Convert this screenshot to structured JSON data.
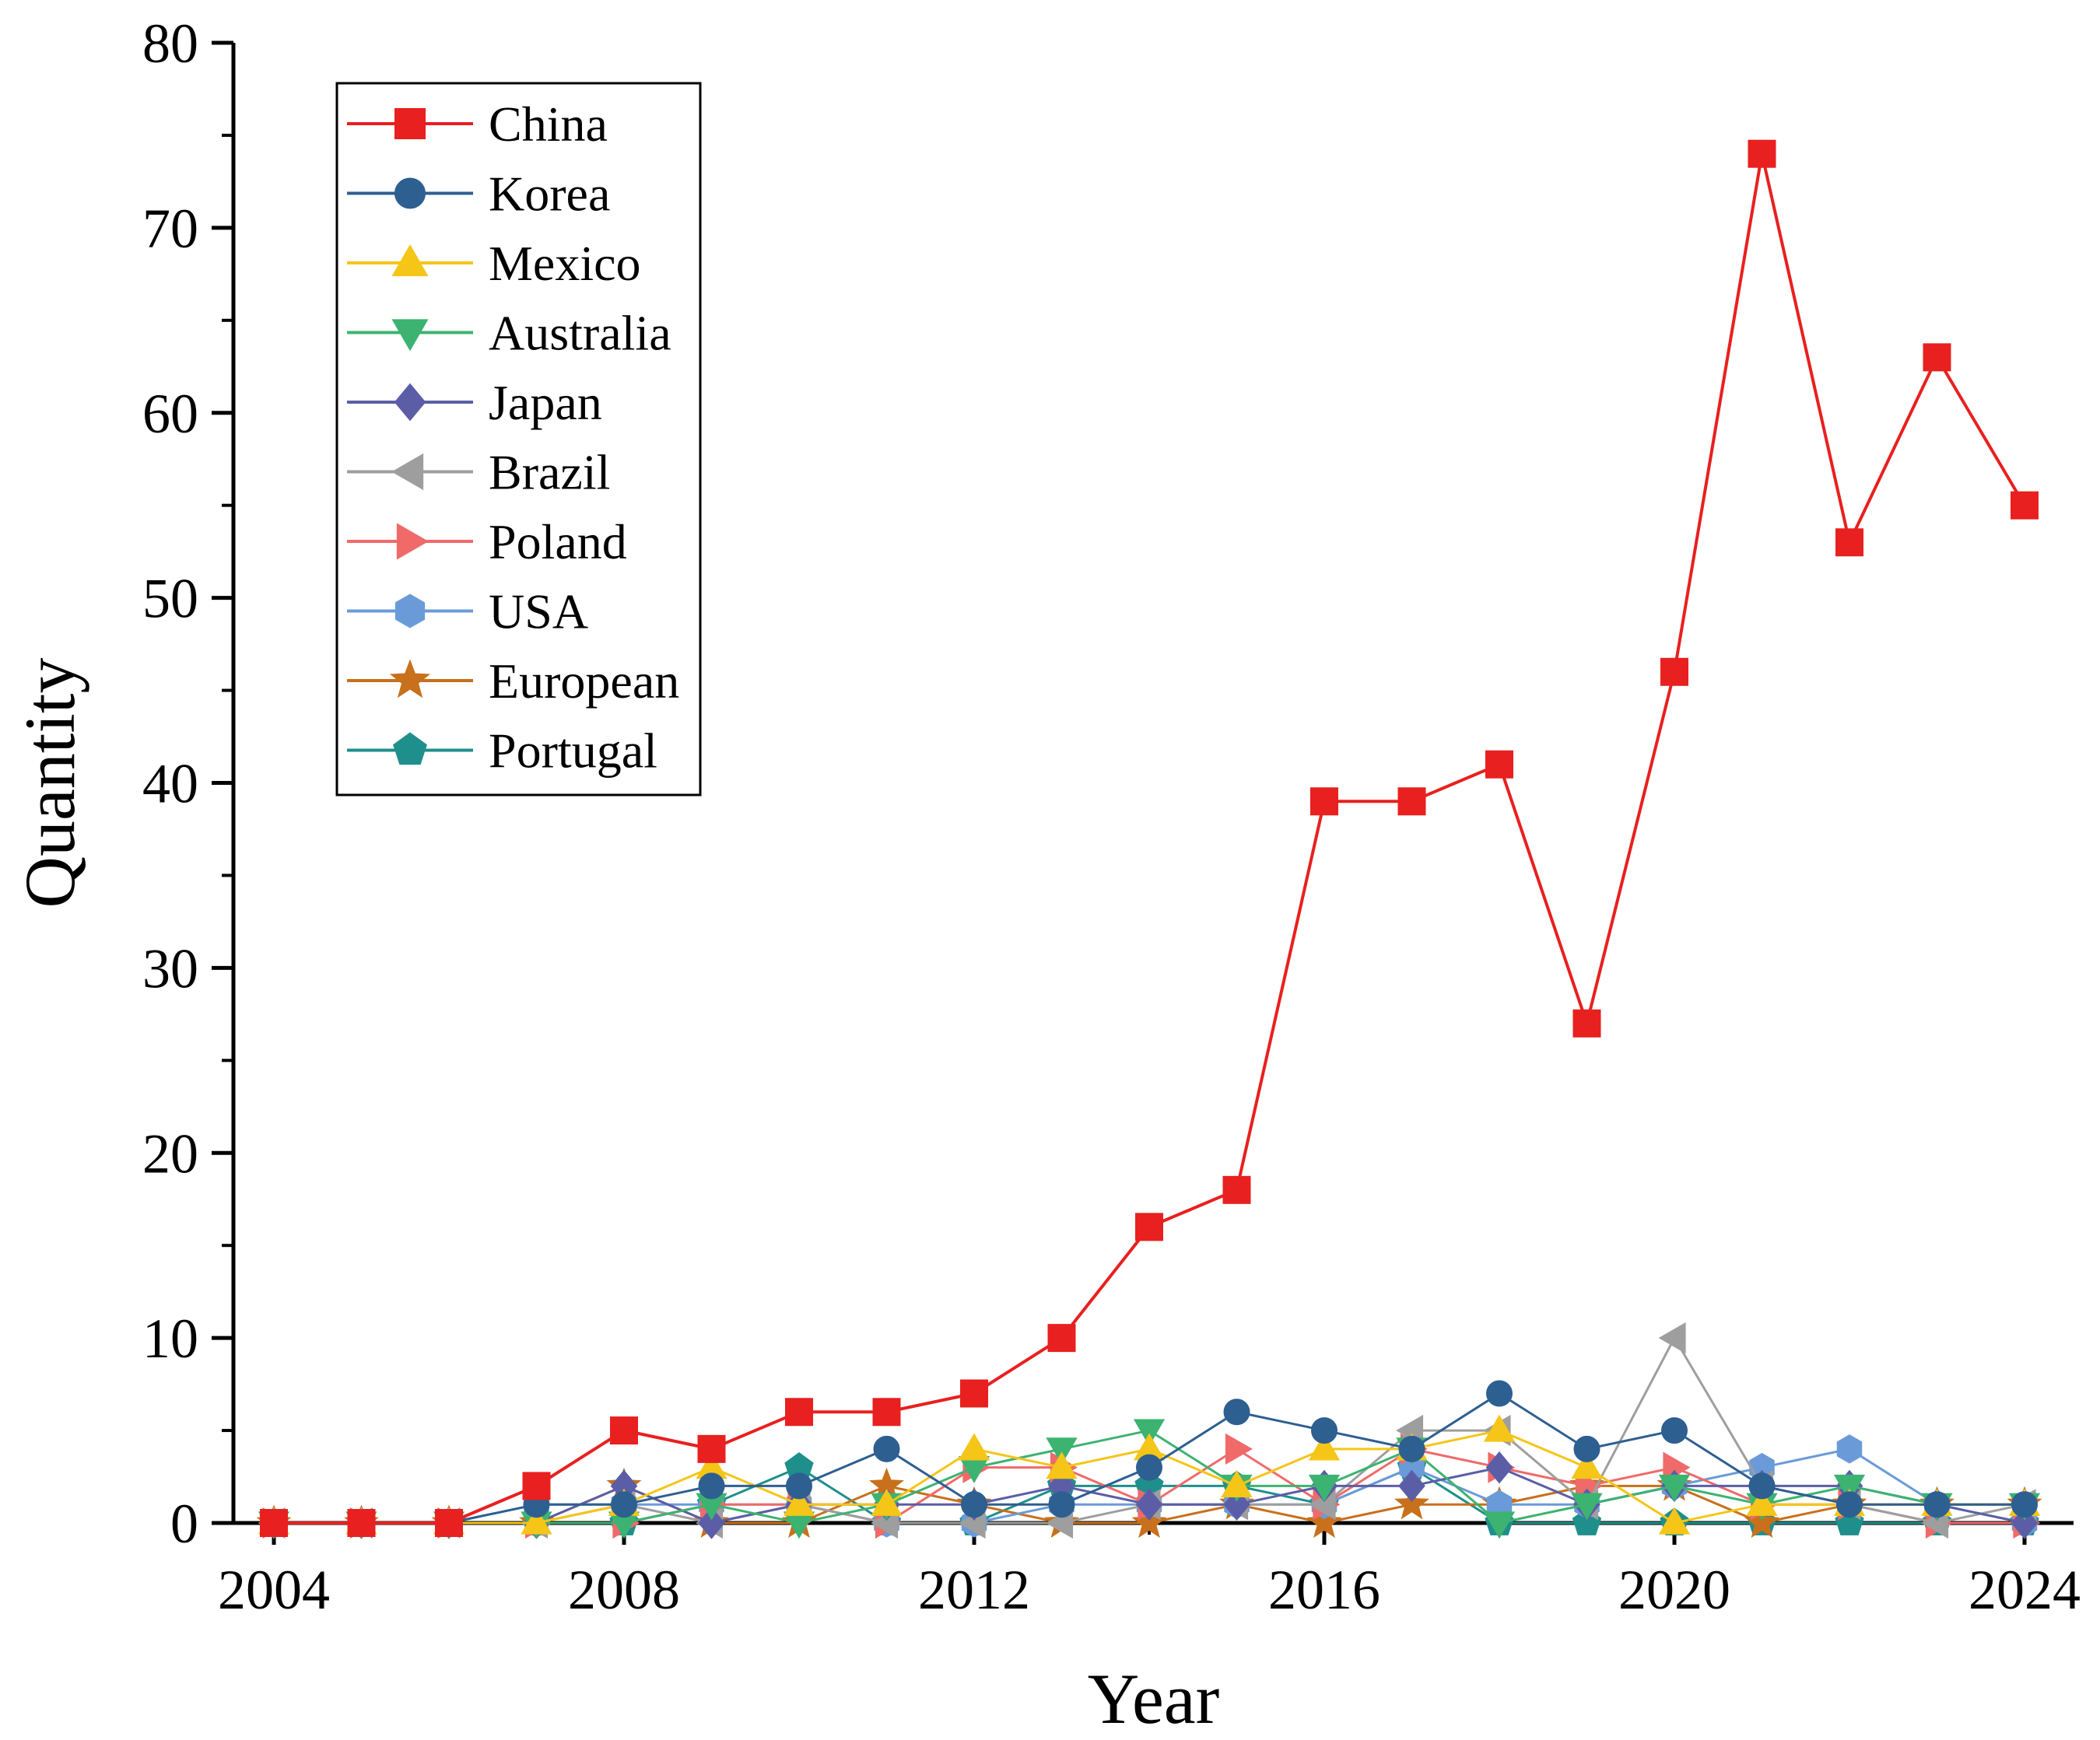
{
  "chart_data": {
    "type": "line",
    "title": "",
    "xlabel": "Year",
    "ylabel": "Quantity",
    "xlim": [
      2004,
      2024
    ],
    "ylim": [
      0,
      80
    ],
    "x_ticks": [
      2004,
      2008,
      2012,
      2016,
      2020,
      2024
    ],
    "y_ticks": [
      0,
      10,
      20,
      30,
      40,
      50,
      60,
      70,
      80
    ],
    "x_tick_labels": [
      "2004",
      "2008",
      "2012",
      "2016",
      "2020",
      "2024"
    ],
    "y_tick_labels": [
      "0",
      "10",
      "20",
      "30",
      "40",
      "50",
      "60",
      "70",
      "80"
    ],
    "grid": false,
    "legend_position": "top-left",
    "x": [
      2004,
      2005,
      2006,
      2007,
      2008,
      2009,
      2010,
      2011,
      2012,
      2013,
      2014,
      2015,
      2016,
      2017,
      2018,
      2019,
      2020,
      2021,
      2022,
      2023,
      2024
    ],
    "series": [
      {
        "name": "China",
        "color": "#e8201f",
        "marker": "square",
        "values": [
          0,
          0,
          0,
          2,
          5,
          4,
          6,
          6,
          7,
          10,
          16,
          18,
          39,
          39,
          41,
          27,
          46,
          74,
          53,
          63,
          55
        ]
      },
      {
        "name": "Korea",
        "color": "#2e5f91",
        "marker": "circle",
        "values": [
          0,
          0,
          0,
          1,
          1,
          2,
          2,
          4,
          1,
          1,
          3,
          6,
          5,
          4,
          7,
          4,
          5,
          2,
          1,
          1,
          1
        ]
      },
      {
        "name": "Mexico",
        "color": "#f5c518",
        "marker": "triangle-up",
        "values": [
          0,
          0,
          0,
          0,
          1,
          3,
          1,
          1,
          4,
          3,
          4,
          2,
          4,
          4,
          5,
          3,
          0,
          1,
          1,
          1,
          1
        ]
      },
      {
        "name": "Australia",
        "color": "#3cb371",
        "marker": "triangle-down",
        "values": [
          0,
          0,
          0,
          0,
          0,
          1,
          0,
          1,
          3,
          4,
          5,
          2,
          2,
          4,
          0,
          1,
          2,
          1,
          2,
          1,
          1
        ]
      },
      {
        "name": "Japan",
        "color": "#5b5ea6",
        "marker": "diamond",
        "values": [
          0,
          0,
          0,
          0,
          2,
          0,
          1,
          1,
          1,
          2,
          1,
          1,
          2,
          2,
          3,
          1,
          2,
          2,
          2,
          1,
          0
        ]
      },
      {
        "name": "Brazil",
        "color": "#9e9e9e",
        "marker": "triangle-left",
        "values": [
          0,
          0,
          0,
          0,
          1,
          0,
          1,
          0,
          0,
          0,
          1,
          1,
          1,
          5,
          5,
          1,
          10,
          2,
          1,
          0,
          1
        ]
      },
      {
        "name": "Poland",
        "color": "#f06a6a",
        "marker": "triangle-right",
        "values": [
          0,
          0,
          0,
          0,
          0,
          1,
          1,
          0,
          3,
          3,
          1,
          4,
          1,
          4,
          3,
          2,
          3,
          1,
          1,
          0,
          0
        ]
      },
      {
        "name": "USA",
        "color": "#6a9bd8",
        "marker": "hexagon",
        "values": [
          0,
          0,
          0,
          1,
          1,
          1,
          1,
          0,
          0,
          1,
          1,
          1,
          1,
          3,
          1,
          1,
          2,
          3,
          4,
          1,
          0
        ]
      },
      {
        "name": "European",
        "color": "#c8701c",
        "marker": "star",
        "values": [
          0,
          0,
          0,
          0,
          2,
          0,
          0,
          2,
          1,
          0,
          0,
          1,
          0,
          1,
          1,
          2,
          2,
          0,
          1,
          1,
          1
        ]
      },
      {
        "name": "Portugal",
        "color": "#1f8f8c",
        "marker": "pentagon",
        "values": [
          0,
          0,
          0,
          0,
          0,
          1,
          3,
          0,
          0,
          2,
          2,
          2,
          1,
          3,
          0,
          0,
          0,
          0,
          0,
          0,
          0
        ]
      }
    ]
  }
}
